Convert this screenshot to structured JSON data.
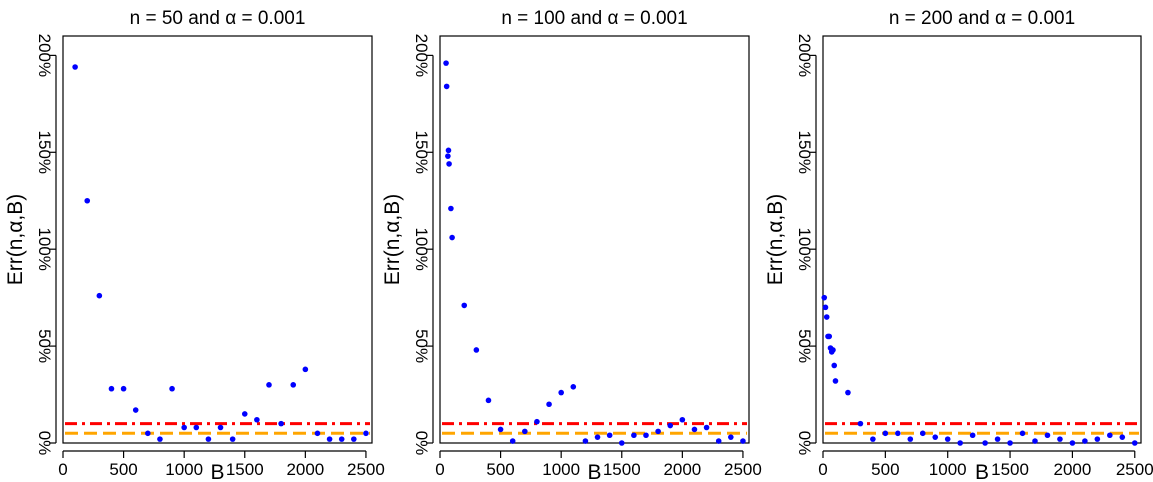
{
  "chart_data": [
    {
      "type": "scatter",
      "title": "n = 50 and α = 0.001",
      "xlabel": "B",
      "ylabel": "Err(n,α,B)",
      "xlim": [
        0,
        2550
      ],
      "ylim": [
        0,
        210
      ],
      "xticks": [
        0,
        500,
        1000,
        1500,
        2000,
        2500
      ],
      "yticks": [
        0,
        50,
        100,
        150,
        200
      ],
      "yticklabels": [
        "0%",
        "50%",
        "100%",
        "150%",
        "200%"
      ],
      "point_color": "#0000ff",
      "reference_lines": [
        {
          "y": 10,
          "color": "#ff0000",
          "style": "dashdot"
        },
        {
          "y": 5,
          "color": "#ffa500",
          "style": "dashed"
        }
      ],
      "x": [
        100,
        200,
        300,
        400,
        500,
        600,
        700,
        800,
        900,
        1000,
        1100,
        1200,
        1300,
        1400,
        1500,
        1600,
        1700,
        1800,
        1900,
        2000,
        2100,
        2200,
        2300,
        2400,
        2500
      ],
      "y": [
        194,
        125,
        76,
        28,
        28,
        17,
        5,
        2,
        28,
        8,
        8,
        2,
        8,
        2,
        15,
        12,
        30,
        10,
        30,
        38,
        5,
        2,
        2,
        2,
        5
      ]
    },
    {
      "type": "scatter",
      "title": "n = 100 and α = 0.001",
      "xlabel": "B",
      "ylabel": "Err(n,α,B)",
      "xlim": [
        0,
        2550
      ],
      "ylim": [
        0,
        210
      ],
      "xticks": [
        0,
        500,
        1000,
        1500,
        2000,
        2500
      ],
      "yticks": [
        0,
        50,
        100,
        150,
        200
      ],
      "yticklabels": [
        "0%",
        "50%",
        "100%",
        "150%",
        "200%"
      ],
      "point_color": "#0000ff",
      "reference_lines": [
        {
          "y": 10,
          "color": "#ff0000",
          "style": "dashdot"
        },
        {
          "y": 5,
          "color": "#ffa500",
          "style": "dashed"
        }
      ],
      "x": [
        50,
        55,
        65,
        70,
        75,
        90,
        100,
        200,
        300,
        400,
        500,
        600,
        700,
        800,
        900,
        1000,
        1100,
        1200,
        1300,
        1400,
        1500,
        1600,
        1700,
        1800,
        1900,
        2000,
        2100,
        2200,
        2300,
        2400,
        2500
      ],
      "y": [
        196,
        184,
        148,
        151,
        144,
        121,
        106,
        71,
        48,
        22,
        7,
        1,
        6,
        11,
        20,
        26,
        29,
        1,
        3,
        4,
        0,
        4,
        4,
        6,
        9,
        12,
        7,
        8,
        1,
        3,
        1
      ]
    },
    {
      "type": "scatter",
      "title": "n = 200 and α = 0.001",
      "xlabel": "B",
      "ylabel": "Err(n,α,B)",
      "xlim": [
        0,
        2550
      ],
      "ylim": [
        0,
        210
      ],
      "xticks": [
        0,
        500,
        1000,
        1500,
        2000,
        2500
      ],
      "yticks": [
        0,
        50,
        100,
        150,
        200
      ],
      "yticklabels": [
        "0%",
        "50%",
        "100%",
        "150%",
        "200%"
      ],
      "point_color": "#0000ff",
      "reference_lines": [
        {
          "y": 10,
          "color": "#ff0000",
          "style": "dashdot"
        },
        {
          "y": 5,
          "color": "#ffa500",
          "style": "dashed"
        }
      ],
      "x": [
        10,
        20,
        30,
        40,
        50,
        60,
        70,
        80,
        90,
        100,
        200,
        300,
        400,
        500,
        600,
        700,
        800,
        900,
        1000,
        1100,
        1200,
        1300,
        1400,
        1500,
        1600,
        1700,
        1800,
        1900,
        2000,
        2100,
        2200,
        2300,
        2400,
        2500
      ],
      "y": [
        75,
        70,
        65,
        55,
        55,
        49,
        47,
        48,
        40,
        32,
        26,
        10,
        2,
        5,
        5,
        2,
        5,
        3,
        2,
        0,
        4,
        0,
        2,
        0,
        5,
        1,
        4,
        2,
        0,
        1,
        2,
        4,
        3,
        0
      ]
    }
  ]
}
